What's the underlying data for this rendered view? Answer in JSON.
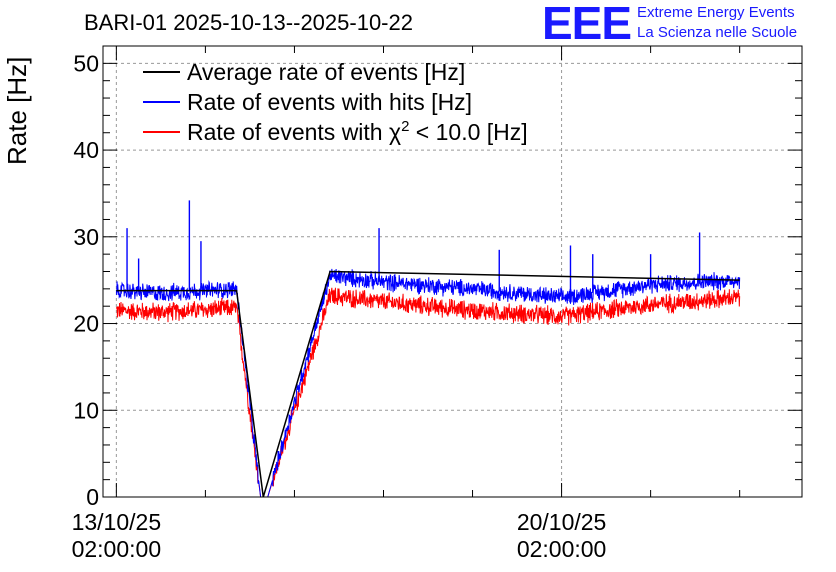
{
  "header": {
    "title": "BARI-01 2025-10-13--2025-10-22",
    "logo_mark": "EEE",
    "logo_line1": "Extreme Energy Events",
    "logo_line2": "La Scienza nelle Scuole"
  },
  "chart_data": {
    "type": "line",
    "title": "BARI-01 2025-10-13--2025-10-22",
    "xlabel": "",
    "ylabel": "Rate [Hz]",
    "ylim": [
      0,
      52
    ],
    "xlim": [
      -0.15,
      7.7
    ],
    "grid": true,
    "legend_position": "top-left",
    "yticks": [
      0,
      10,
      20,
      30,
      40,
      50
    ],
    "xticks": [
      {
        "value": 0,
        "line1": "13/10/25",
        "line2": "02:00:00"
      },
      {
        "value": 5,
        "line1": "20/10/25",
        "line2": "02:00:00"
      }
    ],
    "legend": [
      {
        "label": "Average rate of events [Hz]",
        "color": "#000000"
      },
      {
        "label": "Rate of events with hits [Hz]",
        "color": "#0000ff"
      },
      {
        "label_prefix": "Rate of events with ",
        "label_symbol": "χ",
        "label_sup": "2",
        "label_suffix": " < 10.0 [Hz]",
        "color": "#ff0000"
      }
    ],
    "series": [
      {
        "name": "Average rate of events [Hz]",
        "color": "#000000",
        "x": [
          0,
          1.35,
          1.65,
          2.4,
          7.0
        ],
        "values": [
          23.8,
          23.8,
          0,
          26.0,
          25.0
        ]
      },
      {
        "name": "Rate of events with hits [Hz]",
        "color": "#0000ff",
        "band": 1.2,
        "x": [
          0,
          0.5,
          1.0,
          1.35,
          1.62,
          1.7,
          2.4,
          3.0,
          4.0,
          5.0,
          6.0,
          7.0
        ],
        "values": [
          23.8,
          23.5,
          23.8,
          24.0,
          0,
          0,
          25.5,
          24.8,
          24.0,
          23.0,
          24.5,
          25.0
        ],
        "spikes": [
          {
            "x": 0.12,
            "value": 31.0
          },
          {
            "x": 0.82,
            "value": 34.2
          },
          {
            "x": 0.95,
            "value": 29.5
          },
          {
            "x": 0.25,
            "value": 27.5
          },
          {
            "x": 2.95,
            "value": 31.0
          },
          {
            "x": 4.3,
            "value": 28.5
          },
          {
            "x": 5.1,
            "value": 29.0
          },
          {
            "x": 6.55,
            "value": 30.5
          },
          {
            "x": 5.35,
            "value": 28.0
          },
          {
            "x": 6.0,
            "value": 28.0
          }
        ]
      },
      {
        "name": "Rate of events with χ2 < 10.0 [Hz]",
        "color": "#ff0000",
        "band": 1.3,
        "x": [
          0,
          0.5,
          1.0,
          1.35,
          1.62,
          1.7,
          2.4,
          3.0,
          4.0,
          5.0,
          6.0,
          7.0
        ],
        "values": [
          21.5,
          21.3,
          21.6,
          21.8,
          0,
          0,
          23.2,
          22.5,
          21.5,
          20.8,
          22.2,
          23.0
        ]
      }
    ]
  }
}
